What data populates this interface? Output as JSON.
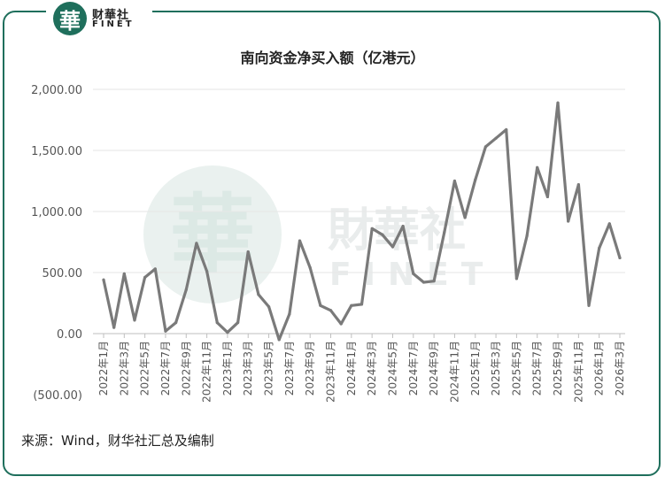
{
  "logo": {
    "glyph": "華",
    "cn": "财華社",
    "en": "FINET"
  },
  "watermark": {
    "glyph": "華",
    "cn": "財華社",
    "en": "FINET"
  },
  "source_text": "来源：Wind，财华社汇总及编制",
  "colors": {
    "line": "#7a7a7a",
    "brand": "#1f6f5c",
    "negative": "#c00000",
    "grid": "#e6e6e6"
  },
  "chart_data": {
    "type": "line",
    "title": "南向资金净买入额（亿港元）",
    "ylim": [
      -500,
      2000
    ],
    "yticks": [
      {
        "value": 2000,
        "label": "2,000.00"
      },
      {
        "value": 1500,
        "label": "1,500.00"
      },
      {
        "value": 1000,
        "label": "1,000.00"
      },
      {
        "value": 500,
        "label": "500.00"
      },
      {
        "value": 0,
        "label": "0.00"
      },
      {
        "value": -500,
        "label": "(500.00)"
      }
    ],
    "x": [
      "2022年1月",
      "2022年2月",
      "2022年3月",
      "2022年4月",
      "2022年5月",
      "2022年6月",
      "2022年7月",
      "2022年8月",
      "2022年9月",
      "2022年10月",
      "2022年11月",
      "2022年12月",
      "2023年1月",
      "2023年2月",
      "2023年3月",
      "2023年4月",
      "2023年5月",
      "2023年6月",
      "2023年7月",
      "2023年8月",
      "2023年9月",
      "2023年10月",
      "2023年11月",
      "2023年12月",
      "2024年1月",
      "2024年2月",
      "2024年3月",
      "2024年4月",
      "2024年5月",
      "2024年6月",
      "2024年7月",
      "2024年8月",
      "2024年9月",
      "2024年10月",
      "2024年11月",
      "2024年12月",
      "2025年1月",
      "2025年2月",
      "2025年3月",
      "2025年4月",
      "2025年5月",
      "2025年6月",
      "2025年7月",
      "2025年8月",
      "2025年9月",
      "2025年10月",
      "2025年11月",
      "2025年12月",
      "2026年1月",
      "2026年2月",
      "2026年3月"
    ],
    "xtick_labels": [
      "2022年1月",
      "2022年3月",
      "2022年5月",
      "2022年7月",
      "2022年9月",
      "2022年11月",
      "2023年1月",
      "2023年3月",
      "2023年5月",
      "2023年7月",
      "2023年9月",
      "2023年11月",
      "2024年1月",
      "2024年3月",
      "2024年5月",
      "2024年7月",
      "2024年9月",
      "2024年11月",
      "2025年1月",
      "2025年3月",
      "2025年5月",
      "2025年7月",
      "2025年9月",
      "2025年11月",
      "2026年1月",
      "2026年3月"
    ],
    "values": [
      440,
      50,
      490,
      110,
      460,
      530,
      20,
      90,
      360,
      740,
      510,
      90,
      10,
      90,
      670,
      320,
      220,
      -50,
      160,
      760,
      540,
      230,
      190,
      80,
      230,
      240,
      860,
      810,
      710,
      880,
      490,
      420,
      430,
      830,
      1250,
      950,
      1260,
      1530,
      1600,
      1670,
      450,
      800,
      1360,
      1120,
      1890,
      920,
      1220,
      230,
      700,
      900,
      620
    ],
    "grid": true,
    "legend": "none"
  }
}
